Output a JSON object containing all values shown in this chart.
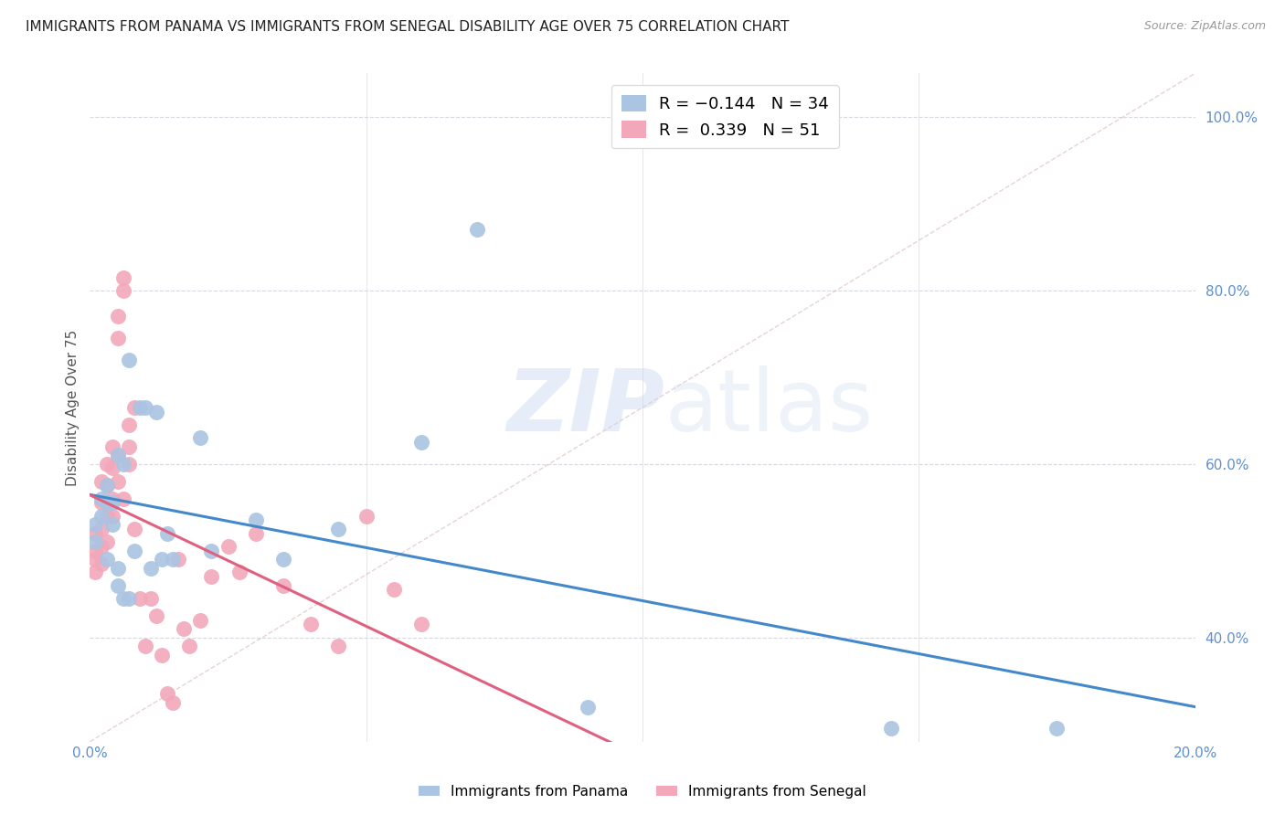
{
  "title": "IMMIGRANTS FROM PANAMA VS IMMIGRANTS FROM SENEGAL DISABILITY AGE OVER 75 CORRELATION CHART",
  "source": "Source: ZipAtlas.com",
  "ylabel": "Disability Age Over 75",
  "xlim": [
    0.0,
    0.2
  ],
  "ylim": [
    0.28,
    1.05
  ],
  "yticks": [
    0.4,
    0.6,
    0.8,
    1.0
  ],
  "ytick_labels": [
    "40.0%",
    "60.0%",
    "80.0%",
    "100.0%"
  ],
  "xticks": [
    0.0,
    0.05,
    0.1,
    0.15,
    0.2
  ],
  "xtick_labels": [
    "0.0%",
    "",
    "",
    "",
    "20.0%"
  ],
  "panama_R": -0.144,
  "panama_N": 34,
  "senegal_R": 0.339,
  "senegal_N": 51,
  "panama_color": "#aac4e2",
  "senegal_color": "#f2a8ba",
  "panama_line_color": "#4488cc",
  "senegal_line_color": "#e06080",
  "panama_x": [
    0.001,
    0.001,
    0.002,
    0.002,
    0.003,
    0.003,
    0.003,
    0.004,
    0.004,
    0.005,
    0.005,
    0.005,
    0.006,
    0.006,
    0.007,
    0.007,
    0.008,
    0.009,
    0.01,
    0.011,
    0.012,
    0.013,
    0.014,
    0.015,
    0.02,
    0.022,
    0.03,
    0.035,
    0.045,
    0.06,
    0.07,
    0.09,
    0.145,
    0.175
  ],
  "panama_y": [
    0.53,
    0.51,
    0.56,
    0.54,
    0.575,
    0.555,
    0.49,
    0.555,
    0.53,
    0.61,
    0.48,
    0.46,
    0.6,
    0.445,
    0.445,
    0.72,
    0.5,
    0.665,
    0.665,
    0.48,
    0.66,
    0.49,
    0.52,
    0.49,
    0.63,
    0.5,
    0.535,
    0.49,
    0.525,
    0.625,
    0.87,
    0.32,
    0.295,
    0.295
  ],
  "senegal_x": [
    0.001,
    0.001,
    0.001,
    0.001,
    0.002,
    0.002,
    0.002,
    0.002,
    0.002,
    0.003,
    0.003,
    0.003,
    0.003,
    0.003,
    0.004,
    0.004,
    0.004,
    0.004,
    0.005,
    0.005,
    0.005,
    0.005,
    0.006,
    0.006,
    0.006,
    0.007,
    0.007,
    0.007,
    0.008,
    0.008,
    0.009,
    0.01,
    0.011,
    0.012,
    0.013,
    0.014,
    0.015,
    0.016,
    0.017,
    0.018,
    0.02,
    0.022,
    0.025,
    0.027,
    0.03,
    0.035,
    0.04,
    0.045,
    0.05,
    0.055,
    0.06
  ],
  "senegal_y": [
    0.5,
    0.52,
    0.49,
    0.475,
    0.58,
    0.555,
    0.525,
    0.505,
    0.485,
    0.6,
    0.575,
    0.555,
    0.54,
    0.51,
    0.62,
    0.595,
    0.56,
    0.54,
    0.77,
    0.745,
    0.61,
    0.58,
    0.815,
    0.8,
    0.56,
    0.645,
    0.62,
    0.6,
    0.665,
    0.525,
    0.445,
    0.39,
    0.445,
    0.425,
    0.38,
    0.335,
    0.325,
    0.49,
    0.41,
    0.39,
    0.42,
    0.47,
    0.505,
    0.475,
    0.52,
    0.46,
    0.415,
    0.39,
    0.54,
    0.455,
    0.415
  ],
  "ref_line_x": [
    0.0,
    0.2
  ],
  "ref_line_y": [
    0.28,
    1.05
  ],
  "watermark_zip": "ZIP",
  "watermark_atlas": "atlas",
  "background_color": "#ffffff",
  "grid_color": "#d8d8e0",
  "title_fontsize": 11,
  "axis_label_fontsize": 11,
  "tick_fontsize": 11,
  "legend_fontsize": 13
}
